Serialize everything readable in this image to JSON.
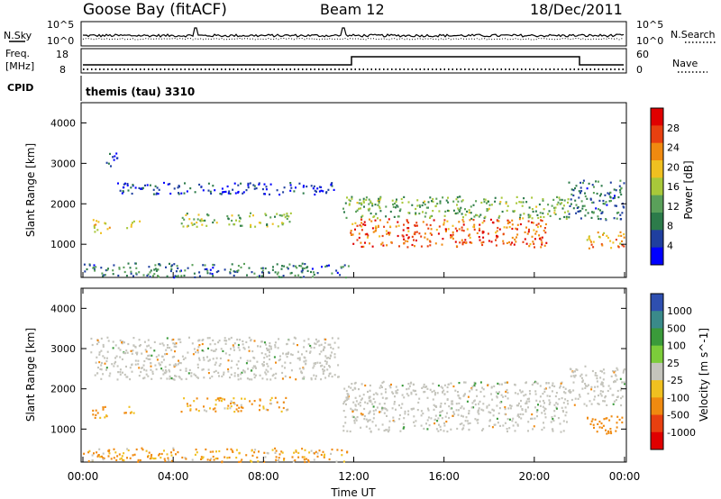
{
  "header": {
    "station": "Goose Bay (fitACF)",
    "beam": "Beam 12",
    "date": "18/Dec/2011"
  },
  "noise_panel": {
    "left_label": "N.Sky",
    "right_label": "N.Search",
    "left_ticks": [
      "10^5",
      "10^0"
    ],
    "right_ticks": [
      "10^5",
      "10^0"
    ]
  },
  "freq_panel": {
    "left_label_1": "Freq.",
    "left_label_2": "[MHz]",
    "left_ticks": [
      "18",
      "8"
    ],
    "right_label": "Nave",
    "right_ticks": [
      "60",
      "0"
    ],
    "cpid_label": "CPID",
    "cpid_text": "themis (tau) 3310"
  },
  "colors": {
    "power_scale": [
      "#0000ff",
      "#1f3f9f",
      "#2c7b4a",
      "#5aa05a",
      "#a8c83a",
      "#f0c020",
      "#f08a10",
      "#e84010",
      "#e00000"
    ],
    "velocity_scale": [
      "#2020a0",
      "#2e6bb0",
      "#3a8a3a",
      "#7ccc3a",
      "#bdbdbd",
      "#c8c8c0",
      "#f0c020",
      "#f08a10",
      "#e84010",
      "#e00000"
    ]
  },
  "chart_data": [
    {
      "type": "heatmap",
      "name": "Power",
      "ylabel": "Slant Range [km]",
      "yticks": [
        "4000",
        "3000",
        "2000",
        "1000"
      ],
      "ylim": [
        180,
        4500
      ],
      "xlim_hours": [
        0,
        24
      ],
      "colorbar_label": "Power [dB]",
      "colorbar_ticks": [
        "28",
        "24",
        "20",
        "16",
        "12",
        "8",
        "4"
      ],
      "colorbar_range": [
        0,
        30
      ],
      "regions": [
        {
          "t0": 0.9,
          "t1": 1.5,
          "r0": 2900,
          "r1": 3300,
          "level": 4
        },
        {
          "t0": 1.5,
          "t1": 11.3,
          "r0": 2250,
          "r1": 2550,
          "level": 4
        },
        {
          "t0": 0.4,
          "t1": 1.3,
          "r0": 1300,
          "r1": 1650,
          "level": 18
        },
        {
          "t0": 1.8,
          "t1": 2.5,
          "r0": 1400,
          "r1": 1600,
          "level": 16
        },
        {
          "t0": 4.3,
          "t1": 9.2,
          "r0": 1450,
          "r1": 1800,
          "level": 14
        },
        {
          "t0": 0.0,
          "t1": 11.8,
          "r0": 200,
          "r1": 550,
          "level": 8
        },
        {
          "t0": 11.5,
          "t1": 21.5,
          "r0": 1650,
          "r1": 2200,
          "level": 12
        },
        {
          "t0": 11.8,
          "t1": 20.5,
          "r0": 950,
          "r1": 1650,
          "level": 24
        },
        {
          "t0": 22.3,
          "t1": 24.0,
          "r0": 900,
          "r1": 1350,
          "level": 20
        },
        {
          "t0": 21.5,
          "t1": 24.0,
          "r0": 1600,
          "r1": 2600,
          "level": 8
        }
      ]
    },
    {
      "type": "heatmap",
      "name": "Velocity",
      "ylabel": "Slant Range [km]",
      "yticks": [
        "4000",
        "3000",
        "2000",
        "1000"
      ],
      "ylim": [
        180,
        4500
      ],
      "xlim_hours": [
        0,
        24
      ],
      "xticks": [
        "00:00",
        "04:00",
        "08:00",
        "12:00",
        "16:00",
        "20:00",
        "00:00"
      ],
      "xlabel": "Time UT",
      "colorbar_label": "Velocity [m s^-1]",
      "colorbar_ticks": [
        "1000",
        "500",
        "100",
        "25",
        "-25",
        "-100",
        "-500",
        "-1000"
      ],
      "colorbar_range": [
        -1000,
        1000
      ],
      "regions": [
        {
          "t0": 0.3,
          "t1": 11.3,
          "r0": 2250,
          "r1": 3300,
          "level": 0
        },
        {
          "t0": 0.4,
          "t1": 1.3,
          "r0": 1300,
          "r1": 1650,
          "level": -200
        },
        {
          "t0": 1.8,
          "t1": 2.5,
          "r0": 1400,
          "r1": 1600,
          "level": -150
        },
        {
          "t0": 4.3,
          "t1": 9.2,
          "r0": 1450,
          "r1": 1800,
          "level": -120
        },
        {
          "t0": 0.0,
          "t1": 11.8,
          "r0": 200,
          "r1": 550,
          "level": -100
        },
        {
          "t0": 11.5,
          "t1": 21.5,
          "r0": 950,
          "r1": 2200,
          "level": 0
        },
        {
          "t0": 22.3,
          "t1": 24.0,
          "r0": 900,
          "r1": 1350,
          "level": -300
        },
        {
          "t0": 21.5,
          "t1": 24.0,
          "r0": 1600,
          "r1": 2600,
          "level": 20
        }
      ]
    }
  ]
}
